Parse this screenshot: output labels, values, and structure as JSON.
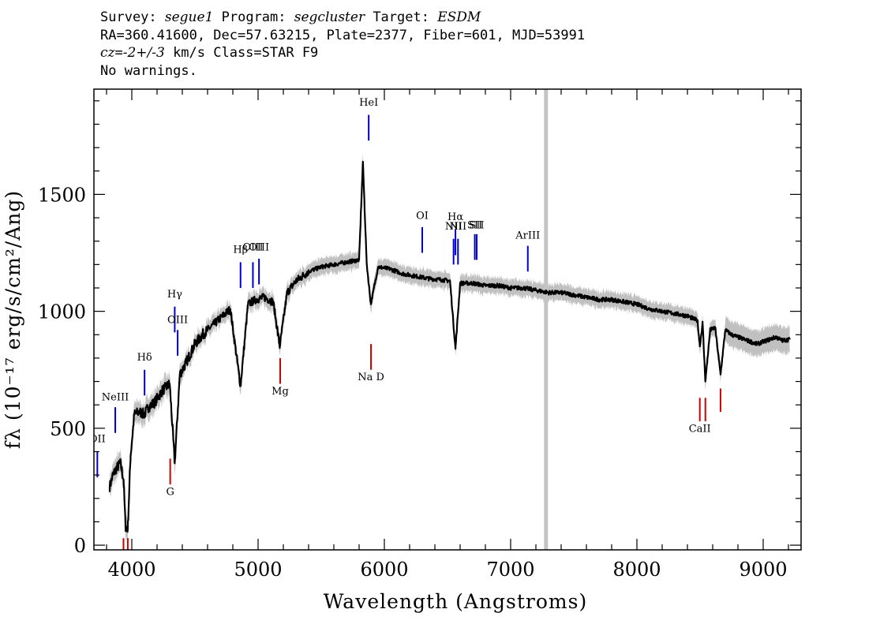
{
  "header": {
    "survey_label": "Survey: ",
    "survey_value": "segue1",
    "program_label": " Program: ",
    "program_value": "segcluster",
    "target_label": " Target: ",
    "target_value": "ESDM",
    "line2": "RA=360.41600, Dec=57.63215, Plate=2377, Fiber=601, MJD=53991",
    "cz_label": "cz",
    "cz_mid": "=",
    "cz_value": "-2+/-3",
    "cz_rest": " km/s Class=STAR F9",
    "line4": "No warnings."
  },
  "chart_data": {
    "type": "line",
    "title": "",
    "xlabel": "Wavelength (Angstroms)",
    "ylabel": "fλ (10⁻¹⁷ erg/s/cm²/Ang)",
    "xlim": [
      3700,
      9300
    ],
    "ylim": [
      -20,
      1950
    ],
    "x_ticks": [
      4000,
      5000,
      6000,
      7000,
      8000,
      9000
    ],
    "y_ticks": [
      0,
      500,
      1000,
      1500
    ],
    "x_tick_labels": [
      "4000",
      "5000",
      "6000",
      "7000",
      "8000",
      "9000"
    ],
    "y_tick_labels": [
      "0",
      "500",
      "1000",
      "1500"
    ],
    "series": [
      {
        "name": "flux",
        "color": "#000000",
        "x": [
          3825,
          3850,
          3880,
          3910,
          3935,
          3950,
          3968,
          3990,
          4020,
          4060,
          4101,
          4130,
          4180,
          4240,
          4300,
          4340,
          4380,
          4430,
          4500,
          4560,
          4620,
          4700,
          4780,
          4861,
          4920,
          4980,
          5050,
          5120,
          5172,
          5230,
          5300,
          5400,
          5500,
          5600,
          5700,
          5800,
          5830,
          5860,
          5893,
          5950,
          6050,
          6150,
          6250,
          6350,
          6450,
          6520,
          6563,
          6600,
          6700,
          6800,
          6900,
          7000,
          7100,
          7200,
          7300,
          7400,
          7500,
          7600,
          7700,
          7800,
          7900,
          8000,
          8100,
          8200,
          8300,
          8400,
          8480,
          8498,
          8520,
          8542,
          8580,
          8620,
          8662,
          8700,
          8750,
          8800,
          8850,
          8900,
          8950,
          9000,
          9050,
          9100,
          9150,
          9210
        ],
        "values": [
          250,
          300,
          330,
          350,
          280,
          80,
          70,
          380,
          560,
          570,
          560,
          590,
          610,
          660,
          690,
          350,
          730,
          780,
          860,
          900,
          930,
          970,
          1010,
          680,
          1030,
          1050,
          1060,
          1040,
          850,
          1080,
          1130,
          1170,
          1190,
          1200,
          1210,
          1220,
          1640,
          1205,
          1030,
          1190,
          1180,
          1160,
          1150,
          1140,
          1135,
          1130,
          840,
          1120,
          1120,
          1110,
          1110,
          1100,
          1100,
          1090,
          1080,
          1080,
          1070,
          1060,
          1050,
          1050,
          1040,
          1030,
          1010,
          1000,
          990,
          980,
          960,
          850,
          950,
          700,
          920,
          930,
          730,
          920,
          900,
          890,
          880,
          870,
          860,
          870,
          880,
          890,
          875,
          880
        ]
      },
      {
        "name": "error band",
        "color": "#c0c0c0"
      }
    ],
    "masked_wavelength": 7280,
    "emission_lines": [
      {
        "label": "OII",
        "x": 3727,
        "y0": 290,
        "y1": 400,
        "color": "#0000cc",
        "label_y": 440
      },
      {
        "label": "NeIII",
        "x": 3869,
        "y0": 480,
        "y1": 590,
        "color": "#0000cc",
        "label_y": 620
      },
      {
        "label": "Hδ",
        "x": 4101,
        "y0": 640,
        "y1": 750,
        "color": "#0000cc",
        "label_y": 790
      },
      {
        "label": "Hγ",
        "x": 4340,
        "y0": 910,
        "y1": 1020,
        "color": "#0000cc",
        "label_y": 1060
      },
      {
        "label": "OIII",
        "x": 4363,
        "y0": 810,
        "y1": 920,
        "color": "#0000cc",
        "label_y": 950
      },
      {
        "label": "Hβ",
        "x": 4861,
        "y0": 1100,
        "y1": 1210,
        "color": "#0000cc",
        "label_y": 1250
      },
      {
        "label": "OIII",
        "x": 4959,
        "y0": 1100,
        "y1": 1210,
        "color": "#0000cc",
        "label_y": 1260
      },
      {
        "label": "OIII",
        "x": 5007,
        "y0": 1115,
        "y1": 1225,
        "color": "#0000cc",
        "label_y": 1260
      },
      {
        "label": "HeI",
        "x": 5876,
        "y0": 1730,
        "y1": 1840,
        "color": "#0000cc",
        "label_y": 1880
      },
      {
        "label": "OI",
        "x": 6300,
        "y0": 1250,
        "y1": 1360,
        "color": "#0000cc",
        "label_y": 1395
      },
      {
        "label": "NII",
        "x": 6548,
        "y0": 1200,
        "y1": 1310,
        "color": "#0000cc",
        "label_y": 1350
      },
      {
        "label": "Hα",
        "x": 6563,
        "y0": 1240,
        "y1": 1350,
        "color": "#0000cc",
        "label_y": 1390
      },
      {
        "label": "NII",
        "x": 6583,
        "y0": 1200,
        "y1": 1310,
        "color": "#0000cc",
        "label_y": 1350
      },
      {
        "label": "SII",
        "x": 6716,
        "y0": 1220,
        "y1": 1330,
        "color": "#0000cc",
        "label_y": 1355
      },
      {
        "label": "SII",
        "x": 6731,
        "y0": 1220,
        "y1": 1330,
        "color": "#0000cc",
        "label_y": 1355
      },
      {
        "label": "ArIII",
        "x": 7136,
        "y0": 1170,
        "y1": 1280,
        "color": "#0000cc",
        "label_y": 1310
      }
    ],
    "absorption_lines": [
      {
        "label": "",
        "x": 3934,
        "y0": -20,
        "y1": 30,
        "color": "#cc0000",
        "label_y": -30
      },
      {
        "label": "",
        "x": 3968,
        "y0": -20,
        "y1": 30,
        "color": "#cc0000",
        "label_y": -30
      },
      {
        "label": "G",
        "x": 4304,
        "y0": 260,
        "y1": 370,
        "color": "#cc0000",
        "label_y": 215
      },
      {
        "label": "Mg",
        "x": 5175,
        "y0": 690,
        "y1": 800,
        "color": "#cc0000",
        "label_y": 645
      },
      {
        "label": "Na D",
        "x": 5894,
        "y0": 750,
        "y1": 860,
        "color": "#cc0000",
        "label_y": 705
      },
      {
        "label": "CaII",
        "x": 8498,
        "y0": 530,
        "y1": 630,
        "color": "#cc0000",
        "label_y": 485
      },
      {
        "label": "",
        "x": 8542,
        "y0": 530,
        "y1": 630,
        "color": "#cc0000",
        "label_y": 485
      },
      {
        "label": "",
        "x": 8662,
        "y0": 570,
        "y1": 670,
        "color": "#cc0000",
        "label_y": 525
      }
    ]
  }
}
